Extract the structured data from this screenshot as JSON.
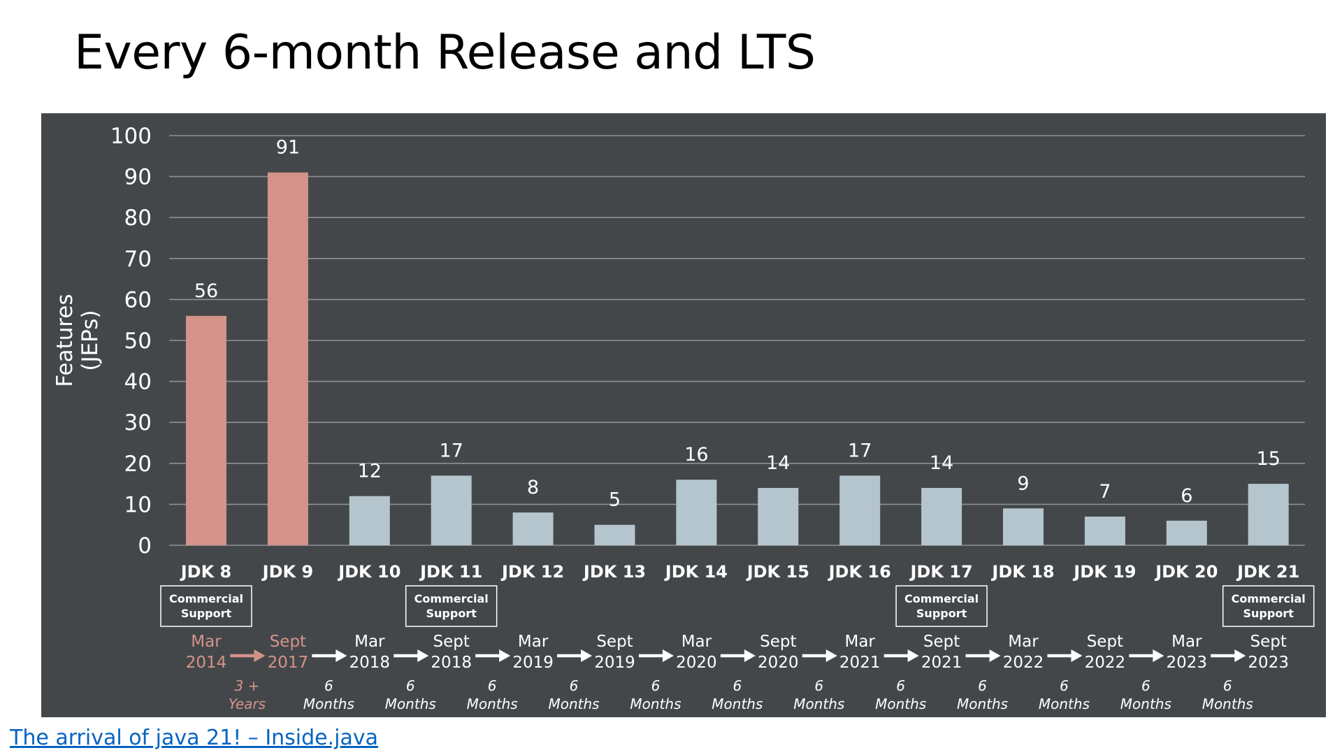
{
  "slide": {
    "title": "Every 6-month Release and LTS",
    "source_link": "The arrival of java 21! – Inside.java"
  },
  "colors": {
    "panel_background": "#44474a",
    "legacy_bar": "#d4938a",
    "six_month_bar": "#b5c5cd",
    "text": "#ffffff",
    "gridline": "#8e9195"
  },
  "chart_data": {
    "type": "bar",
    "categories": [
      "JDK 8",
      "JDK 9",
      "JDK 10",
      "JDK 11",
      "JDK 12",
      "JDK 13",
      "JDK 14",
      "JDK 15",
      "JDK 16",
      "JDK 17",
      "JDK 18",
      "JDK 19",
      "JDK 20",
      "JDK 21"
    ],
    "values": [
      56,
      91,
      12,
      17,
      8,
      5,
      16,
      14,
      17,
      14,
      9,
      7,
      6,
      15
    ],
    "data_labels": [
      "56",
      "91",
      "12",
      "17",
      "8",
      "5",
      "16",
      "14",
      "17",
      "14",
      "9",
      "7",
      "6",
      "15"
    ],
    "ylabel": [
      "Features",
      "(JEPs)"
    ],
    "ylim": [
      0,
      100
    ],
    "yticks": [
      0,
      10,
      20,
      30,
      40,
      50,
      60,
      70,
      80,
      90,
      100
    ],
    "grid": true,
    "bar_style": [
      "legacy",
      "legacy",
      "six-month",
      "six-month",
      "six-month",
      "six-month",
      "six-month",
      "six-month",
      "six-month",
      "six-month",
      "six-month",
      "six-month",
      "six-month",
      "six-month"
    ],
    "commercial_support": {
      "label": [
        "Commercial",
        "Support"
      ],
      "releases": [
        "JDK 8",
        "JDK 11",
        "JDK 17",
        "JDK 21"
      ]
    },
    "release_dates": [
      [
        "Mar",
        "2014"
      ],
      [
        "Sept",
        "2017"
      ],
      [
        "Mar",
        "2018"
      ],
      [
        "Sept",
        "2018"
      ],
      [
        "Mar",
        "2019"
      ],
      [
        "Sept",
        "2019"
      ],
      [
        "Mar",
        "2020"
      ],
      [
        "Sept",
        "2020"
      ],
      [
        "Mar",
        "2021"
      ],
      [
        "Sept",
        "2021"
      ],
      [
        "Mar",
        "2022"
      ],
      [
        "Sept",
        "2022"
      ],
      [
        "Mar",
        "2023"
      ],
      [
        "Sept",
        "2023"
      ]
    ],
    "intervals": [
      [
        "3 +",
        "Years"
      ],
      [
        "6",
        "Months"
      ],
      [
        "6",
        "Months"
      ],
      [
        "6",
        "Months"
      ],
      [
        "6",
        "Months"
      ],
      [
        "6",
        "Months"
      ],
      [
        "6",
        "Months"
      ],
      [
        "6",
        "Months"
      ],
      [
        "6",
        "Months"
      ],
      [
        "6",
        "Months"
      ],
      [
        "6",
        "Months"
      ],
      [
        "6",
        "Months"
      ],
      [
        "6",
        "Months"
      ]
    ]
  }
}
